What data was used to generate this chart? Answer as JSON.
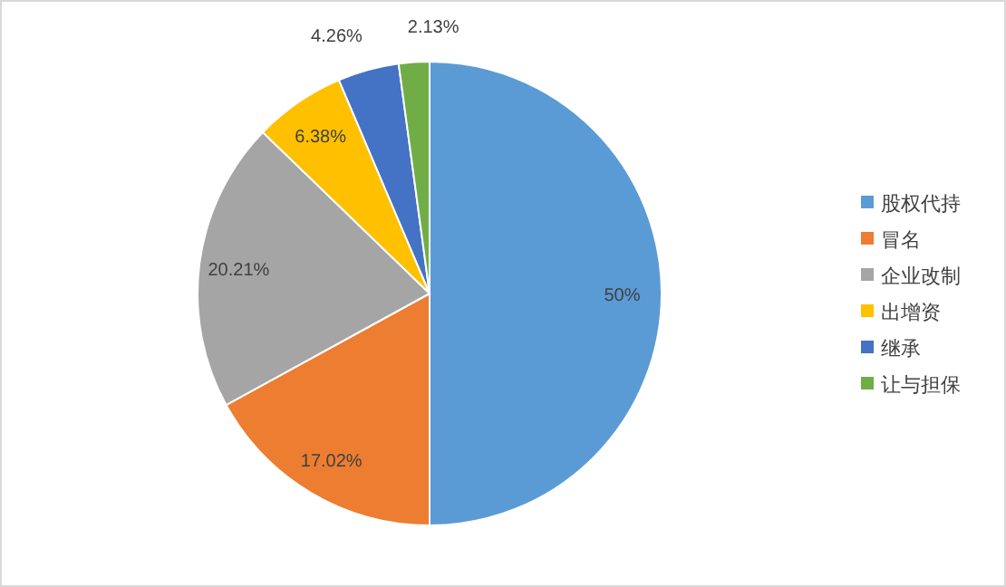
{
  "chart_data": {
    "type": "pie",
    "categories": [
      "股权代持",
      "冒名",
      "企业改制",
      "出增资",
      "继承",
      "让与担保"
    ],
    "values": [
      50,
      17.02,
      20.21,
      6.38,
      4.26,
      2.13
    ],
    "colors": [
      "#5b9bd5",
      "#ed7d31",
      "#a5a5a5",
      "#ffc000",
      "#4472c4",
      "#70ad47"
    ],
    "value_labels": [
      "50%",
      "17.02%",
      "20.21%",
      "6.38%",
      "4.26%",
      "2.13%"
    ],
    "legend": "right"
  }
}
